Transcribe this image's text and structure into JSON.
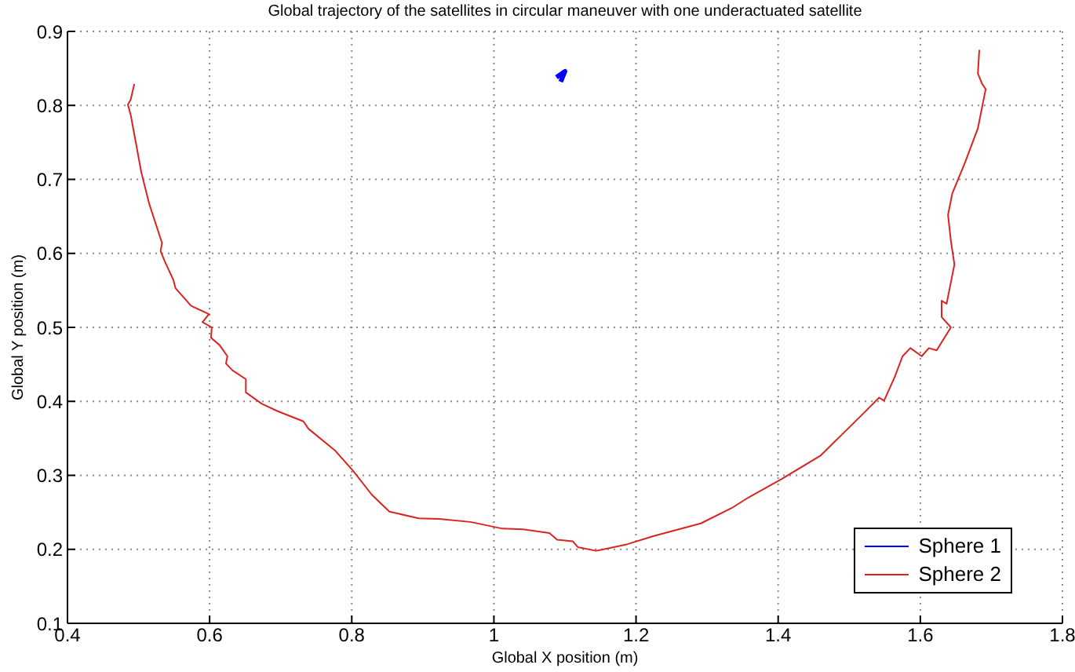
{
  "chart_data": {
    "type": "line",
    "title": "Global trajectory of the satellites in circular maneuver with one underactuated satellite",
    "xlabel": "Global X position (m)",
    "ylabel": "Global Y position (m)",
    "xlim": [
      0.4,
      1.8
    ],
    "xticks": [
      0.4,
      0.6,
      0.8,
      1,
      1.2,
      1.4,
      1.6,
      1.8
    ],
    "ylim": [
      0.1,
      0.9
    ],
    "yticks": [
      0.1,
      0.2,
      0.3,
      0.4,
      0.5,
      0.6,
      0.7,
      0.8,
      0.9
    ],
    "grid": true,
    "legend": "bottom right",
    "marker": "none",
    "line_style": "solid",
    "series": [
      {
        "name": "Sphere 1",
        "color": "#0000ff",
        "x": [
          1.088,
          1.1,
          1.094
        ],
        "values": [
          0.838,
          0.846,
          0.832
        ]
      },
      {
        "name": "Sphere 2",
        "color": "#dd2222",
        "x": [
          0.494,
          0.489,
          0.485,
          0.489,
          0.504,
          0.515,
          0.533,
          0.531,
          0.537,
          0.549,
          0.552,
          0.574,
          0.599,
          0.59,
          0.603,
          0.602,
          0.614,
          0.625,
          0.623,
          0.632,
          0.651,
          0.651,
          0.673,
          0.695,
          0.732,
          0.739,
          0.776,
          0.802,
          0.828,
          0.853,
          0.894,
          0.923,
          0.967,
          1.012,
          1.041,
          1.078,
          1.089,
          1.111,
          1.118,
          1.144,
          1.188,
          1.225,
          1.291,
          1.335,
          1.358,
          1.405,
          1.46,
          1.516,
          1.542,
          1.549,
          1.564,
          1.575,
          1.586,
          1.602,
          1.612,
          1.623,
          1.643,
          1.63,
          1.63,
          1.637,
          1.648,
          1.643,
          1.639,
          1.645,
          1.663,
          1.681,
          1.692,
          1.687,
          1.681,
          1.683
        ],
        "values": [
          0.829,
          0.808,
          0.801,
          0.787,
          0.709,
          0.667,
          0.614,
          0.603,
          0.589,
          0.564,
          0.553,
          0.529,
          0.518,
          0.507,
          0.5,
          0.486,
          0.476,
          0.461,
          0.451,
          0.442,
          0.43,
          0.412,
          0.397,
          0.387,
          0.373,
          0.363,
          0.334,
          0.306,
          0.274,
          0.251,
          0.242,
          0.241,
          0.237,
          0.228,
          0.227,
          0.222,
          0.213,
          0.211,
          0.203,
          0.198,
          0.207,
          0.218,
          0.235,
          0.256,
          0.27,
          0.295,
          0.327,
          0.38,
          0.405,
          0.401,
          0.433,
          0.461,
          0.472,
          0.461,
          0.472,
          0.469,
          0.5,
          0.514,
          0.536,
          0.532,
          0.585,
          0.617,
          0.652,
          0.681,
          0.723,
          0.769,
          0.822,
          0.829,
          0.843,
          0.875
        ]
      }
    ]
  }
}
